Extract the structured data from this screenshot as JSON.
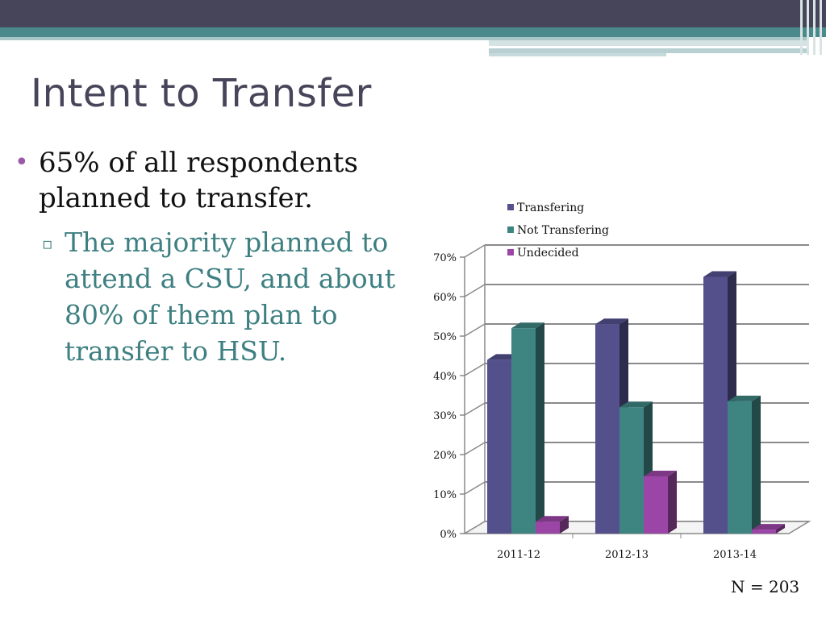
{
  "slide": {
    "title": "Intent to Transfer",
    "bullet1": "65% of all respondents planned to transfer.",
    "bullet2": "The majority planned to attend a CSU, and about 80% of them plan to transfer to HSU.",
    "note": "N = 203"
  },
  "colors": {
    "header": "#474559",
    "teal": "#4a8a8c",
    "accent_bullet": "#9b5aa5",
    "sub_text": "#3e7f81"
  },
  "chart_data": {
    "type": "bar",
    "categories": [
      "2011-12",
      "2012-13",
      "2013-14"
    ],
    "series": [
      {
        "name": "Transfering",
        "values": [
          44,
          53,
          65
        ],
        "color": "#53508c"
      },
      {
        "name": "Not Transfering",
        "values": [
          52,
          32,
          33.5
        ],
        "color": "#3e8582"
      },
      {
        "name": "Undecided",
        "values": [
          3,
          14.5,
          1
        ],
        "color": "#9b46a6"
      }
    ],
    "ylim": [
      0,
      70
    ],
    "yticks": [
      "0%",
      "10%",
      "20%",
      "30%",
      "40%",
      "50%",
      "60%",
      "70%"
    ],
    "legend": "top-left inside plot",
    "grid": true
  }
}
